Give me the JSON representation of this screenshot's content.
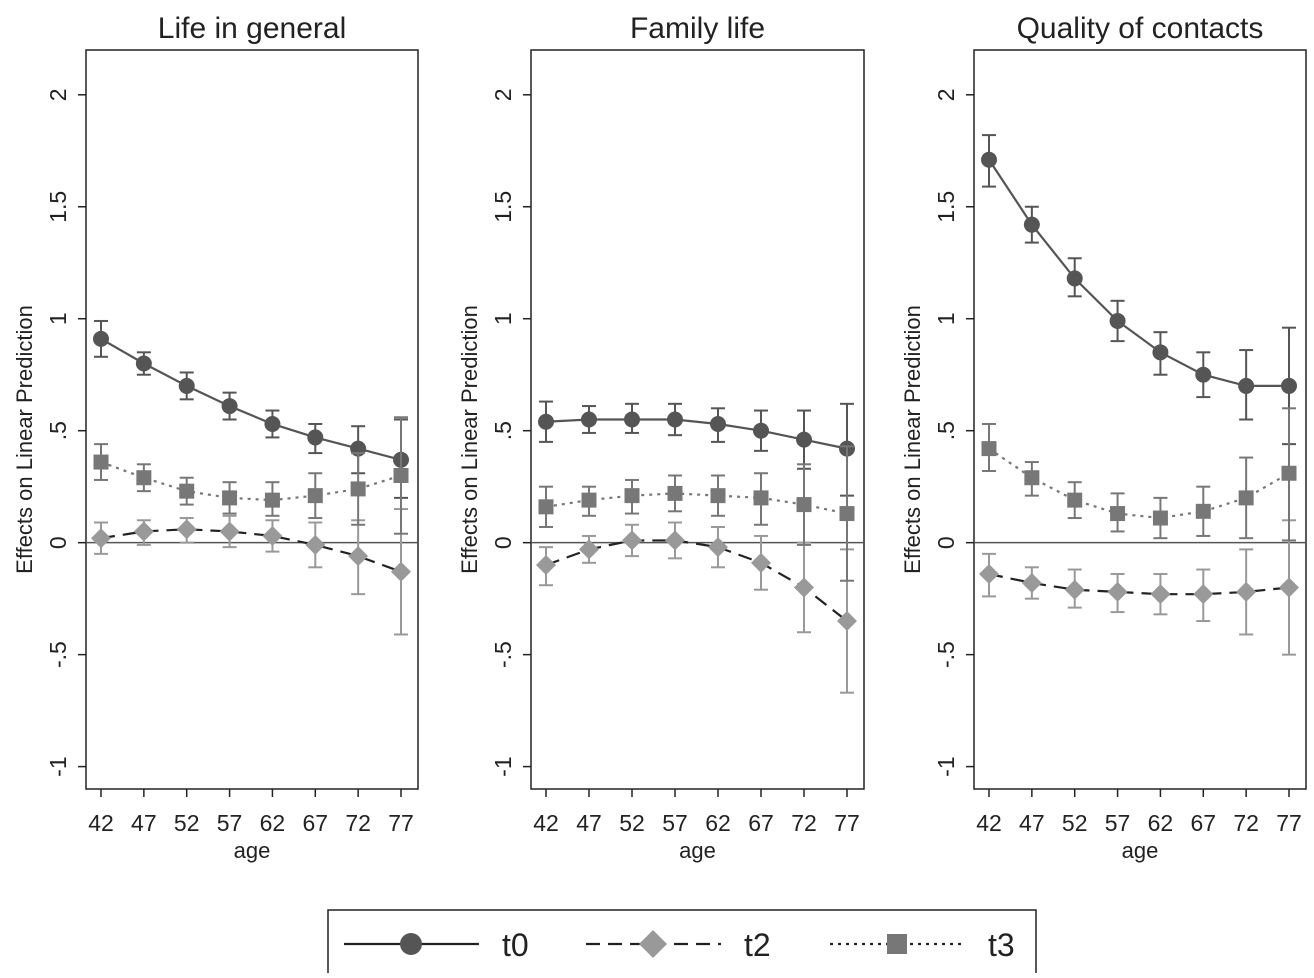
{
  "chart_data": [
    {
      "type": "line",
      "title": "Life in general",
      "xlabel": "age",
      "ylabel": "Effects on Linear Prediction",
      "x": [
        42,
        47,
        52,
        57,
        62,
        67,
        72,
        77
      ],
      "x_tick_labels": [
        "42",
        "47",
        "52",
        "57",
        "62",
        "67",
        "72",
        "77"
      ],
      "ylim": [
        -1.1,
        2.2
      ],
      "y_ticks": [
        -1,
        -0.5,
        0,
        0.5,
        1,
        1.5,
        2
      ],
      "y_tick_labels": [
        "-1",
        "-.5",
        "0",
        ".5",
        "1",
        "1.5",
        "2"
      ],
      "reference_line": 0,
      "grid": false,
      "series": [
        {
          "name": "t0",
          "marker": "circle",
          "line": "solid",
          "color": "#555555",
          "values": [
            0.91,
            0.8,
            0.7,
            0.61,
            0.53,
            0.47,
            0.42,
            0.37
          ],
          "ci_lower": [
            0.83,
            0.75,
            0.64,
            0.55,
            0.47,
            0.4,
            0.31,
            0.2
          ],
          "ci_upper": [
            0.99,
            0.85,
            0.76,
            0.67,
            0.59,
            0.53,
            0.52,
            0.55
          ]
        },
        {
          "name": "t2",
          "marker": "diamond",
          "line": "dash",
          "color": "#999999",
          "values": [
            0.02,
            0.05,
            0.06,
            0.05,
            0.03,
            -0.01,
            -0.06,
            -0.13
          ],
          "ci_lower": [
            -0.05,
            -0.01,
            0.0,
            -0.02,
            -0.04,
            -0.11,
            -0.23,
            -0.41
          ],
          "ci_upper": [
            0.09,
            0.1,
            0.11,
            0.12,
            0.1,
            0.09,
            0.1,
            0.15
          ]
        },
        {
          "name": "t3",
          "marker": "square",
          "line": "dot",
          "color": "#777777",
          "values": [
            0.36,
            0.29,
            0.23,
            0.2,
            0.19,
            0.21,
            0.24,
            0.3
          ],
          "ci_lower": [
            0.28,
            0.23,
            0.17,
            0.13,
            0.12,
            0.11,
            0.08,
            0.04
          ],
          "ci_upper": [
            0.44,
            0.35,
            0.29,
            0.27,
            0.27,
            0.31,
            0.4,
            0.56
          ]
        }
      ]
    },
    {
      "type": "line",
      "title": "Family life",
      "xlabel": "age",
      "ylabel": "Effects on Linear Prediction",
      "x": [
        42,
        47,
        52,
        57,
        62,
        67,
        72,
        77
      ],
      "x_tick_labels": [
        "42",
        "47",
        "52",
        "57",
        "62",
        "67",
        "72",
        "77"
      ],
      "ylim": [
        -1.1,
        2.2
      ],
      "y_ticks": [
        -1,
        -0.5,
        0,
        0.5,
        1,
        1.5,
        2
      ],
      "y_tick_labels": [
        "-1",
        "-.5",
        "0",
        ".5",
        "1",
        "1.5",
        "2"
      ],
      "reference_line": 0,
      "grid": false,
      "series": [
        {
          "name": "t0",
          "marker": "circle",
          "line": "solid",
          "color": "#555555",
          "values": [
            0.54,
            0.55,
            0.55,
            0.55,
            0.53,
            0.5,
            0.46,
            0.42
          ],
          "ci_lower": [
            0.45,
            0.49,
            0.49,
            0.48,
            0.45,
            0.41,
            0.33,
            0.21
          ],
          "ci_upper": [
            0.63,
            0.61,
            0.62,
            0.62,
            0.6,
            0.59,
            0.59,
            0.62
          ]
        },
        {
          "name": "t2",
          "marker": "diamond",
          "line": "dash",
          "color": "#999999",
          "values": [
            -0.1,
            -0.03,
            0.01,
            0.01,
            -0.02,
            -0.09,
            -0.2,
            -0.35
          ],
          "ci_lower": [
            -0.19,
            -0.09,
            -0.06,
            -0.07,
            -0.11,
            -0.21,
            -0.4,
            -0.67
          ],
          "ci_upper": [
            -0.02,
            0.03,
            0.08,
            0.09,
            0.07,
            0.03,
            0.0,
            -0.03
          ]
        },
        {
          "name": "t3",
          "marker": "square",
          "line": "dot",
          "color": "#777777",
          "values": [
            0.16,
            0.19,
            0.21,
            0.22,
            0.21,
            0.2,
            0.17,
            0.13
          ],
          "ci_lower": [
            0.07,
            0.12,
            0.13,
            0.14,
            0.12,
            0.08,
            -0.01,
            -0.17
          ],
          "ci_upper": [
            0.25,
            0.25,
            0.28,
            0.3,
            0.3,
            0.31,
            0.35,
            0.43
          ]
        }
      ]
    },
    {
      "type": "line",
      "title": "Quality of contacts",
      "xlabel": "age",
      "ylabel": "Effects on Linear Prediction",
      "x": [
        42,
        47,
        52,
        57,
        62,
        67,
        72,
        77
      ],
      "x_tick_labels": [
        "42",
        "47",
        "52",
        "57",
        "62",
        "67",
        "72",
        "77"
      ],
      "ylim": [
        -1.1,
        2.2
      ],
      "y_ticks": [
        -1,
        -0.5,
        0,
        0.5,
        1,
        1.5,
        2
      ],
      "y_tick_labels": [
        "-1",
        "-.5",
        "0",
        ".5",
        "1",
        "1.5",
        "2"
      ],
      "reference_line": 0,
      "grid": false,
      "series": [
        {
          "name": "t0",
          "marker": "circle",
          "line": "solid",
          "color": "#555555",
          "values": [
            1.71,
            1.42,
            1.18,
            0.99,
            0.85,
            0.75,
            0.7,
            0.7
          ],
          "ci_lower": [
            1.59,
            1.34,
            1.1,
            0.9,
            0.75,
            0.65,
            0.55,
            0.44
          ],
          "ci_upper": [
            1.82,
            1.5,
            1.27,
            1.08,
            0.94,
            0.85,
            0.86,
            0.96
          ]
        },
        {
          "name": "t2",
          "marker": "diamond",
          "line": "dash",
          "color": "#999999",
          "values": [
            -0.14,
            -0.18,
            -0.21,
            -0.22,
            -0.23,
            -0.23,
            -0.22,
            -0.2
          ],
          "ci_lower": [
            -0.24,
            -0.25,
            -0.29,
            -0.31,
            -0.32,
            -0.35,
            -0.41,
            -0.5
          ],
          "ci_upper": [
            -0.05,
            -0.11,
            -0.12,
            -0.14,
            -0.14,
            -0.12,
            -0.03,
            0.1
          ]
        },
        {
          "name": "t3",
          "marker": "square",
          "line": "dot",
          "color": "#777777",
          "values": [
            0.42,
            0.29,
            0.19,
            0.13,
            0.11,
            0.14,
            0.2,
            0.31
          ],
          "ci_lower": [
            0.32,
            0.21,
            0.11,
            0.05,
            0.02,
            0.03,
            0.02,
            0.01
          ],
          "ci_upper": [
            0.53,
            0.36,
            0.27,
            0.22,
            0.2,
            0.25,
            0.38,
            0.6
          ]
        }
      ]
    }
  ],
  "legend": {
    "placement": "bottom-center",
    "items": [
      {
        "label": "t0",
        "marker": "circle",
        "line": "solid",
        "color": "#555555"
      },
      {
        "label": "t2",
        "marker": "diamond",
        "line": "dash",
        "color": "#999999"
      },
      {
        "label": "t3",
        "marker": "square",
        "line": "dot",
        "color": "#777777"
      }
    ]
  }
}
